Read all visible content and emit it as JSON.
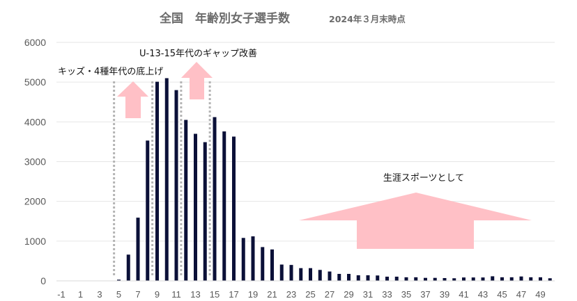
{
  "chart_data": {
    "type": "bar",
    "title": "全国　年齢別女子選手数",
    "subtitle": "2024年３月末時点",
    "xlabel": "",
    "ylabel": "",
    "ylim": [
      0,
      6000
    ],
    "yticks": [
      0,
      1000,
      2000,
      3000,
      4000,
      5000,
      6000
    ],
    "xtick_labels": [
      "-1",
      "1",
      "3",
      "5",
      "7",
      "9",
      "11",
      "13",
      "15",
      "17",
      "19",
      "21",
      "23",
      "25",
      "27",
      "29",
      "31",
      "33",
      "35",
      "37",
      "39",
      "41",
      "43",
      "45",
      "47",
      "49"
    ],
    "grid": true,
    "legend": null,
    "bar_color": "#0b1038",
    "categories": [
      -1,
      0,
      1,
      2,
      3,
      4,
      5,
      6,
      7,
      8,
      9,
      10,
      11,
      12,
      13,
      14,
      15,
      16,
      17,
      18,
      19,
      20,
      21,
      22,
      23,
      24,
      25,
      26,
      27,
      28,
      29,
      30,
      31,
      32,
      33,
      34,
      35,
      36,
      37,
      38,
      39,
      40,
      41,
      42,
      43,
      44,
      45,
      46,
      47,
      48,
      49,
      50
    ],
    "values": [
      0,
      0,
      0,
      0,
      0,
      0,
      30,
      660,
      1590,
      3530,
      5010,
      5100,
      4800,
      4050,
      3700,
      3490,
      4120,
      3760,
      3630,
      1080,
      1120,
      850,
      790,
      410,
      400,
      320,
      320,
      275,
      235,
      175,
      175,
      140,
      140,
      135,
      105,
      105,
      90,
      90,
      75,
      75,
      70,
      65,
      85,
      85,
      85,
      115,
      90,
      90,
      110,
      90,
      90,
      65
    ],
    "annotations": [
      {
        "text": "キッズ・4種年代の底上げ",
        "type": "up-arrow",
        "range_ages": [
          4,
          8
        ]
      },
      {
        "text": "U-13-15年代のギャップ改善",
        "type": "up-arrow",
        "range_ages": [
          11,
          14
        ]
      },
      {
        "text": "生涯スポーツとして",
        "type": "wide-up-arrow",
        "range_ages": [
          25,
          50
        ]
      }
    ],
    "dotted_dividers_at_ages": [
      4.5,
      8.5,
      11.5,
      14.5
    ],
    "arrow_color": "#ffc0c6",
    "divider_color": "#b4b4b4"
  }
}
